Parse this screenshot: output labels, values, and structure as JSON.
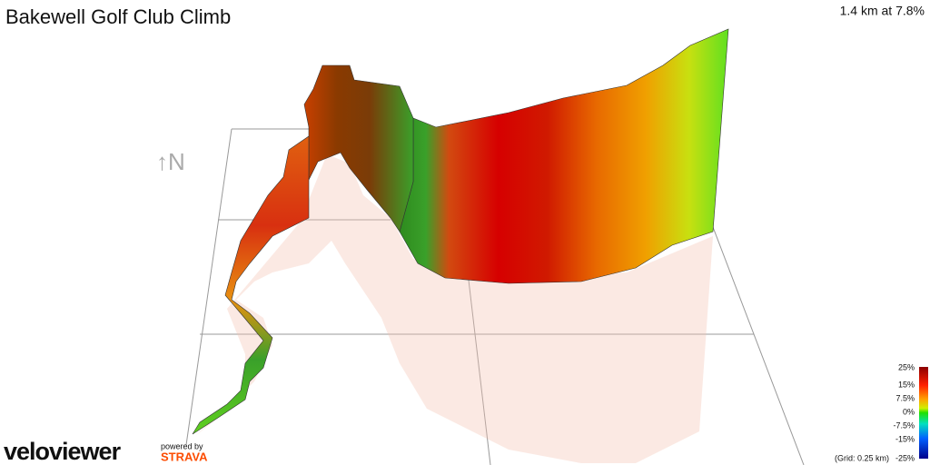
{
  "header": {
    "title": "Bakewell Golf Club Climb",
    "summary": "1.4 km at 7.8%"
  },
  "compass": "↑N",
  "legend": {
    "labels": [
      "25%",
      "15%",
      "7.5%",
      "0%",
      "-7.5%",
      "-15%",
      "-25%"
    ],
    "grid_note": "(Grid: 0.25 km)"
  },
  "branding": {
    "logo": "veloviewer",
    "powered_by": "powered by",
    "partner": "STRAVA"
  }
}
